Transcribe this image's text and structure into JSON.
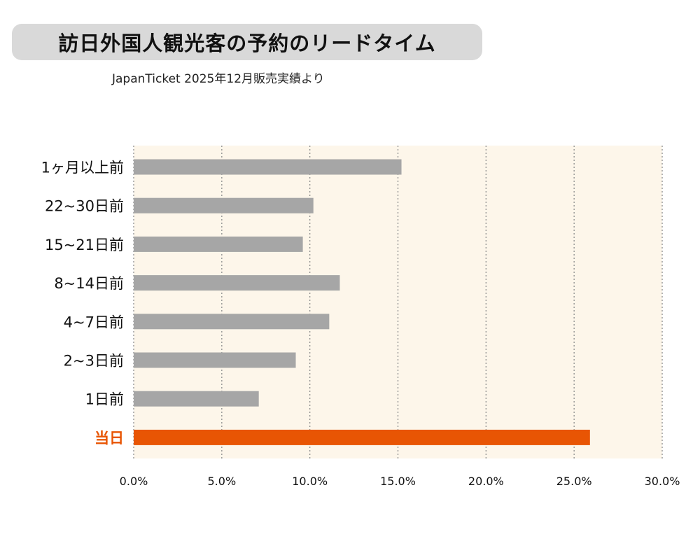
{
  "chart_data": {
    "type": "bar",
    "orientation": "horizontal",
    "title": "訪日外国人観光客の予約のリードタイム",
    "subtitle": "JapanTicket 2025年12月販売実績より",
    "categories": [
      "1ヶ月以上前",
      "22~30日前",
      "15~21日前",
      "8~14日前",
      "4~7日前",
      "2~3日前",
      "1日前",
      "当日"
    ],
    "values": [
      15.2,
      10.2,
      9.6,
      11.7,
      11.1,
      9.2,
      7.1,
      25.9
    ],
    "unit": "%",
    "xlim": [
      0,
      30
    ],
    "xticks": [
      "0.0%",
      "5.0%",
      "10.0%",
      "15.0%",
      "20.0%",
      "25.0%",
      "30.0%"
    ],
    "grid": "vertical dotted",
    "highlight_category": "当日",
    "colors": {
      "bar": "#a6a6a6",
      "highlight": "#e85504",
      "plot_background": "#fdf6ea",
      "grid": "#8c8c8c",
      "highlight_label": "#e85504"
    }
  }
}
